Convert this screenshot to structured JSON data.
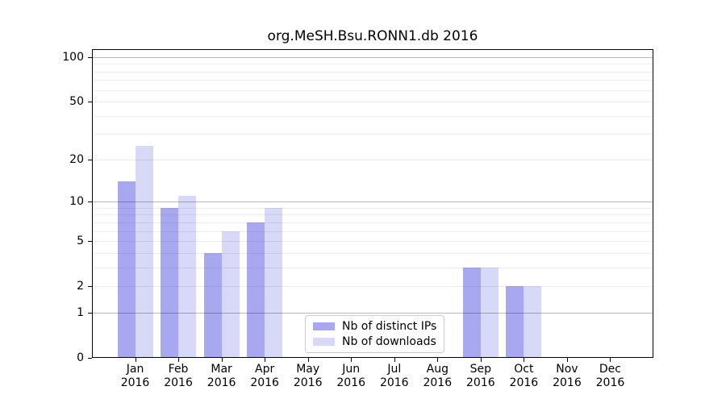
{
  "chart_data": {
    "type": "bar",
    "title": "org.MeSH.Bsu.RONN1.db 2016",
    "categories": [
      "Jan",
      "Feb",
      "Mar",
      "Apr",
      "May",
      "Jun",
      "Jul",
      "Aug",
      "Sep",
      "Oct",
      "Nov",
      "Dec"
    ],
    "year_label": "2016",
    "series": [
      {
        "name": "Nb of distinct IPs",
        "color": "#a8a8f0",
        "values": [
          14,
          9,
          4,
          7,
          0,
          0,
          0,
          0,
          3,
          2,
          0,
          0
        ]
      },
      {
        "name": "Nb of downloads",
        "color": "#d8d8f8",
        "values": [
          25,
          11,
          6,
          9,
          0,
          0,
          0,
          0,
          3,
          2,
          0,
          0
        ]
      }
    ],
    "y_axis": {
      "scale": "log10(1+y)",
      "tick_values": [
        0,
        1,
        2,
        5,
        10,
        20,
        50,
        100
      ],
      "minor_gridlines": [
        2,
        3,
        4,
        5,
        6,
        7,
        8,
        9,
        20,
        30,
        40,
        50,
        60,
        70,
        80,
        90
      ],
      "major_gridlines": [
        1,
        10,
        100
      ],
      "ylim": [
        0,
        113
      ]
    },
    "legend_position": "bottom-center-inside",
    "colors": {
      "minor_grid": "rgba(0,0,0,0.07)",
      "major_grid": "rgba(0,0,0,0.28)",
      "axis": "#000000",
      "background": "#ffffff"
    }
  }
}
